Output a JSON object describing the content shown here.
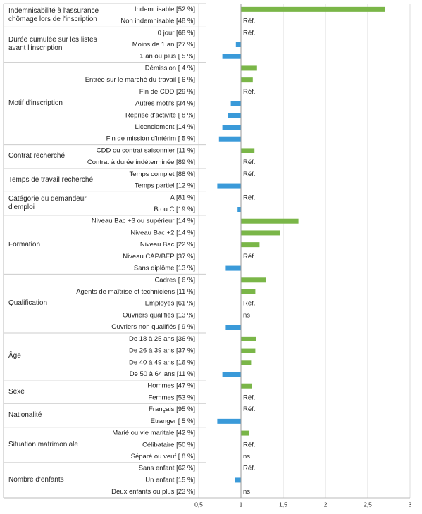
{
  "chart_data": {
    "type": "forest",
    "base": 1,
    "grid": true,
    "colors": {
      "above": "#7ab648",
      "below": "#3a9ad9"
    },
    "xlim": [
      0.5,
      3
    ],
    "xticks": [
      {
        "value": 0.5,
        "label": "0,5"
      },
      1,
      {
        "value": 1.5,
        "label": "1,5"
      },
      2,
      {
        "value": 2.5,
        "label": "2,5"
      },
      3
    ],
    "groups": [
      {
        "name": "Indemnisabilité à l'assurance chômage lors de l'inscription",
        "categories": [
          "Indemnisable [52 %]",
          "Non indemnisable [48 %]"
        ],
        "values": [
          2.7,
          null
        ],
        "value_labels": [
          null,
          "Réf."
        ]
      },
      {
        "name": "Durée cumulée sur les listes avant l'inscription",
        "categories": [
          "0 jour [68 %]",
          "Moins de 1 an [27 %]",
          "1 an ou plus [ 5 %]"
        ],
        "values": [
          null,
          0.94,
          0.78
        ],
        "value_labels": [
          "Réf.",
          null,
          null
        ]
      },
      {
        "name": "Motif d'inscription",
        "categories": [
          "Démission [ 4 %]",
          "Entrée sur le marché du travail [ 6 %]",
          "Fin de CDD [29 %]",
          "Autres motifs [34 %]",
          "Reprise d'activité [ 8 %]",
          "Licenciement [14 %]",
          "Fin de mission d'intérim [ 5 %]"
        ],
        "values": [
          1.19,
          1.14,
          null,
          0.88,
          0.85,
          0.78,
          0.74
        ],
        "value_labels": [
          null,
          null,
          "Réf.",
          null,
          null,
          null,
          null
        ]
      },
      {
        "name": "Contrat recherché",
        "categories": [
          "CDD ou contrat saisonnier [11 %]",
          "Contrat à durée indéterminée [89 %]"
        ],
        "values": [
          1.16,
          null
        ],
        "value_labels": [
          null,
          "Réf."
        ]
      },
      {
        "name": "Temps de travail recherché",
        "categories": [
          "Temps complet [88 %]",
          "Temps partiel [12 %]"
        ],
        "values": [
          null,
          0.72
        ],
        "value_labels": [
          "Réf.",
          null
        ]
      },
      {
        "name": "Catégorie du demandeur d'emploi",
        "categories": [
          "A [81 %]",
          "B ou C [19 %]"
        ],
        "values": [
          null,
          0.96
        ],
        "value_labels": [
          "Réf.",
          null
        ]
      },
      {
        "name": "Formation",
        "categories": [
          "Niveau Bac +3 ou supérieur [14 %]",
          "Niveau Bac +2 [14 %]",
          "Niveau Bac [22 %]",
          "Niveau CAP/BEP [37 %]",
          "Sans diplôme [13 %]"
        ],
        "values": [
          1.68,
          1.46,
          1.22,
          null,
          0.82
        ],
        "value_labels": [
          null,
          null,
          null,
          "Réf.",
          null
        ]
      },
      {
        "name": "Qualification",
        "categories": [
          "Cadres [ 6 %]",
          "Agents de maîtrise et techniciens [11 %]",
          "Employés [61 %]",
          "Ouvriers qualifiés [13 %]",
          "Ouvriers non qualifiés [ 9 %]"
        ],
        "values": [
          1.3,
          1.17,
          null,
          null,
          0.82
        ],
        "value_labels": [
          null,
          null,
          "Réf.",
          "ns",
          null
        ]
      },
      {
        "name": "Âge",
        "categories": [
          "De 18 à 25 ans [36 %]",
          "De 26 à 39 ans [37 %]",
          "De 40 à 49 ans [16 %]",
          "De 50 à 64 ans [11 %]"
        ],
        "values": [
          1.18,
          1.17,
          1.12,
          0.78
        ],
        "value_labels": [
          null,
          null,
          null,
          null
        ]
      },
      {
        "name": "Sexe",
        "categories": [
          "Hommes [47 %]",
          "Femmes [53 %]"
        ],
        "values": [
          1.13,
          null
        ],
        "value_labels": [
          null,
          "Réf."
        ]
      },
      {
        "name": "Nationalité",
        "categories": [
          "Français [95 %]",
          "Étranger [ 5 %]"
        ],
        "values": [
          null,
          0.72
        ],
        "value_labels": [
          "Réf.",
          null
        ]
      },
      {
        "name": "Situation matrimoniale",
        "categories": [
          "Marié ou vie maritale [42 %]",
          "Célibataire [50 %]",
          "Séparé ou veuf [ 8 %]"
        ],
        "values": [
          1.1,
          null,
          null
        ],
        "value_labels": [
          null,
          "Réf.",
          "ns"
        ]
      },
      {
        "name": "Nombre d'enfants",
        "categories": [
          "Sans enfant [62 %]",
          "Un enfant [15 %]",
          "Deux enfants ou plus [23 %]"
        ],
        "values": [
          null,
          0.93,
          null
        ],
        "value_labels": [
          "Réf.",
          null,
          "ns"
        ]
      }
    ]
  }
}
